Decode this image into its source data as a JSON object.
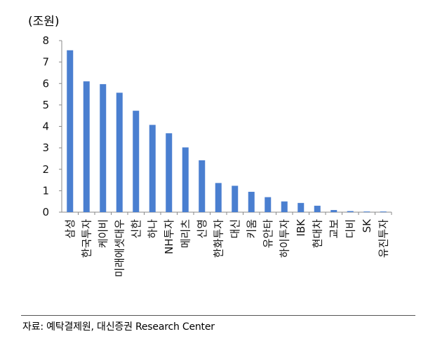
{
  "chart_data": {
    "type": "bar",
    "unit_label": "(조원)",
    "categories": [
      "삼성",
      "한국투자",
      "케이비",
      "미래에셋대우",
      "신한",
      "하나",
      "NH투자",
      "메리츠",
      "신영",
      "한화투자",
      "대신",
      "키움",
      "유안타",
      "하이투자",
      "IBK",
      "현대차",
      "교보",
      "디비",
      "SK",
      "유진투자"
    ],
    "values": [
      7.55,
      6.1,
      5.97,
      5.57,
      4.73,
      4.07,
      3.68,
      3.02,
      2.42,
      1.36,
      1.23,
      0.95,
      0.7,
      0.5,
      0.43,
      0.3,
      0.1,
      0.05,
      0.03,
      0.03
    ],
    "yticks": [
      0,
      1,
      2,
      3,
      4,
      5,
      6,
      7,
      8
    ],
    "ylim": [
      0,
      8
    ],
    "grid": false,
    "bar_color": "#4a7fd0"
  },
  "source_text": "자료: 예탁결제원, 대신증권 Research Center"
}
